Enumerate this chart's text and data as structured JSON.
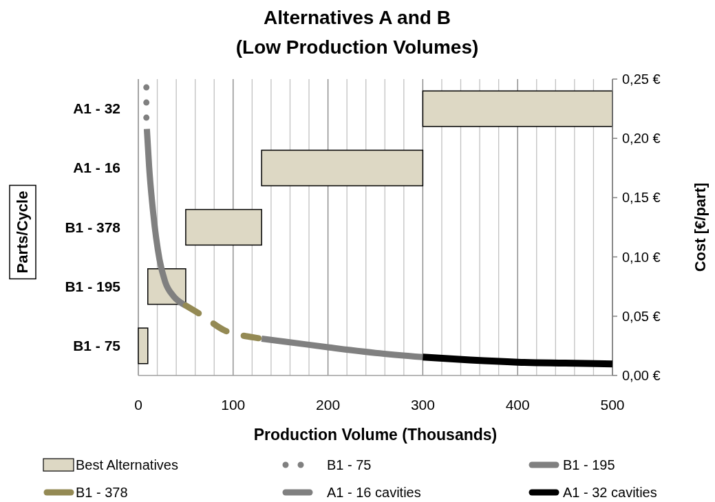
{
  "chart_data": [
    {
      "type": "bar",
      "orientation": "horizontal",
      "title": "Alternatives A and B\n(Low Production Volumes)",
      "xlabel": "Production Volume (Thousands)",
      "ylabel": "Parts/Cycle",
      "categories": [
        "A1 - 32",
        "A1 - 16",
        "B1 - 378",
        "B1 - 195",
        "B1 - 75"
      ],
      "xlim": [
        0,
        500
      ],
      "xticks": [
        0,
        {
          "value": 20,
          "label": null
        },
        {
          "value": 40,
          "label": null
        },
        {
          "value": 60,
          "label": null
        },
        {
          "value": 80,
          "label": null
        },
        100,
        {
          "value": 120,
          "label": null
        },
        {
          "value": 140,
          "label": null
        },
        {
          "value": 160,
          "label": null
        },
        {
          "value": 180,
          "label": null
        },
        200,
        {
          "value": 220,
          "label": null
        },
        {
          "value": 240,
          "label": null
        },
        {
          "value": 260,
          "label": null
        },
        {
          "value": 280,
          "label": null
        },
        300,
        {
          "value": 320,
          "label": null
        },
        {
          "value": 340,
          "label": null
        },
        {
          "value": 360,
          "label": null
        },
        {
          "value": 380,
          "label": null
        },
        400,
        {
          "value": 420,
          "label": null
        },
        {
          "value": 440,
          "label": null
        },
        {
          "value": 460,
          "label": null
        },
        {
          "value": 480,
          "label": null
        },
        500
      ],
      "grid": "x",
      "legend": "bottom",
      "series": [
        {
          "name": "Best Alternatives",
          "color": "#ddd8c4",
          "values": [
            200,
            170,
            80,
            40,
            10
          ],
          "base": [
            300,
            130,
            50,
            10,
            0
          ]
        }
      ]
    },
    {
      "type": "line",
      "ylabel": "Cost [€/part]",
      "xlim": [
        0,
        500
      ],
      "ylim": [
        0,
        0.25
      ],
      "yticks": [
        {
          "value": 0,
          "label": "0,00 €"
        },
        {
          "value": 0.05,
          "label": "0,05 €"
        },
        {
          "value": 0.1,
          "label": "0,10 €"
        },
        {
          "value": 0.15,
          "label": "0,15 €"
        },
        {
          "value": 0.2,
          "label": "0,20 €"
        },
        {
          "value": 0.25,
          "label": "0,25 €"
        }
      ],
      "tick_labels": "y",
      "legend": "bottom",
      "series": [
        {
          "name": "B1 - 75",
          "color": "#808080",
          "line_style": "dotted",
          "x": [
            8.5,
            8.5,
            8.5
          ],
          "values": [
            0.243,
            0.229,
            0.216
          ]
        },
        {
          "name": "B1 - 195",
          "color": "#808080",
          "line_style": "solid",
          "x": [
            9,
            11.4,
            15.7,
            22.3,
            28.3,
            37,
            47.7,
            50
          ],
          "values": [
            0.208,
            0.176,
            0.137,
            0.098,
            0.079,
            0.067,
            0.06,
            0.059
          ]
        },
        {
          "name": "B1 - 378",
          "color": "#948a54",
          "line_style": "dashed",
          "x": [
            50,
            64.6,
            91,
            122.6,
            130
          ],
          "values": [
            0.059,
            0.052,
            0.038,
            0.032,
            0.031
          ]
        },
        {
          "name": "A1 - 16 cavities",
          "color": "#808080",
          "line_style": "solid",
          "x": [
            130,
            154,
            200,
            250,
            300
          ],
          "values": [
            0.031,
            0.0286,
            0.0238,
            0.019,
            0.0155
          ]
        },
        {
          "name": "A1 - 32 cavities",
          "color": "#000000",
          "line_style": "solid",
          "x": [
            300,
            350,
            400,
            450,
            500
          ],
          "values": [
            0.0155,
            0.013,
            0.0112,
            0.0104,
            0.0097
          ]
        }
      ]
    }
  ]
}
